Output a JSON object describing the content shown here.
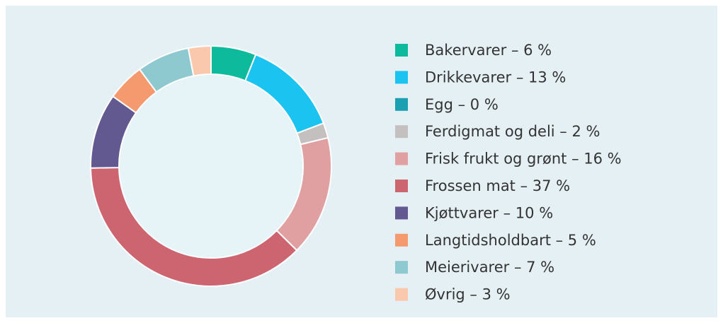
{
  "chart_data": {
    "type": "pie",
    "categories": [
      "Bakervarer – 6 %",
      "Drikkevarer – 13 %",
      "Egg – 0 %",
      "Ferdigmat og deli – 2 %",
      "Frisk frukt og grønt – 16 %",
      "Frossen mat – 37 %",
      "Kjøttvarer – 10 %",
      "Langtidsholdbart – 5 %",
      "Meierivarer – 7 %",
      "Øvrig – 3 %"
    ],
    "values": [
      6,
      13,
      0,
      2,
      16,
      37,
      10,
      5,
      7,
      3
    ],
    "colors": [
      "#0dbb9c",
      "#1ac3f0",
      "#1aa0b0",
      "#c4c0c0",
      "#e0a0a2",
      "#cd6570",
      "#625990",
      "#f59a6e",
      "#8ec9d0",
      "#f9c8ad"
    ],
    "donut": true,
    "legend": "right"
  }
}
